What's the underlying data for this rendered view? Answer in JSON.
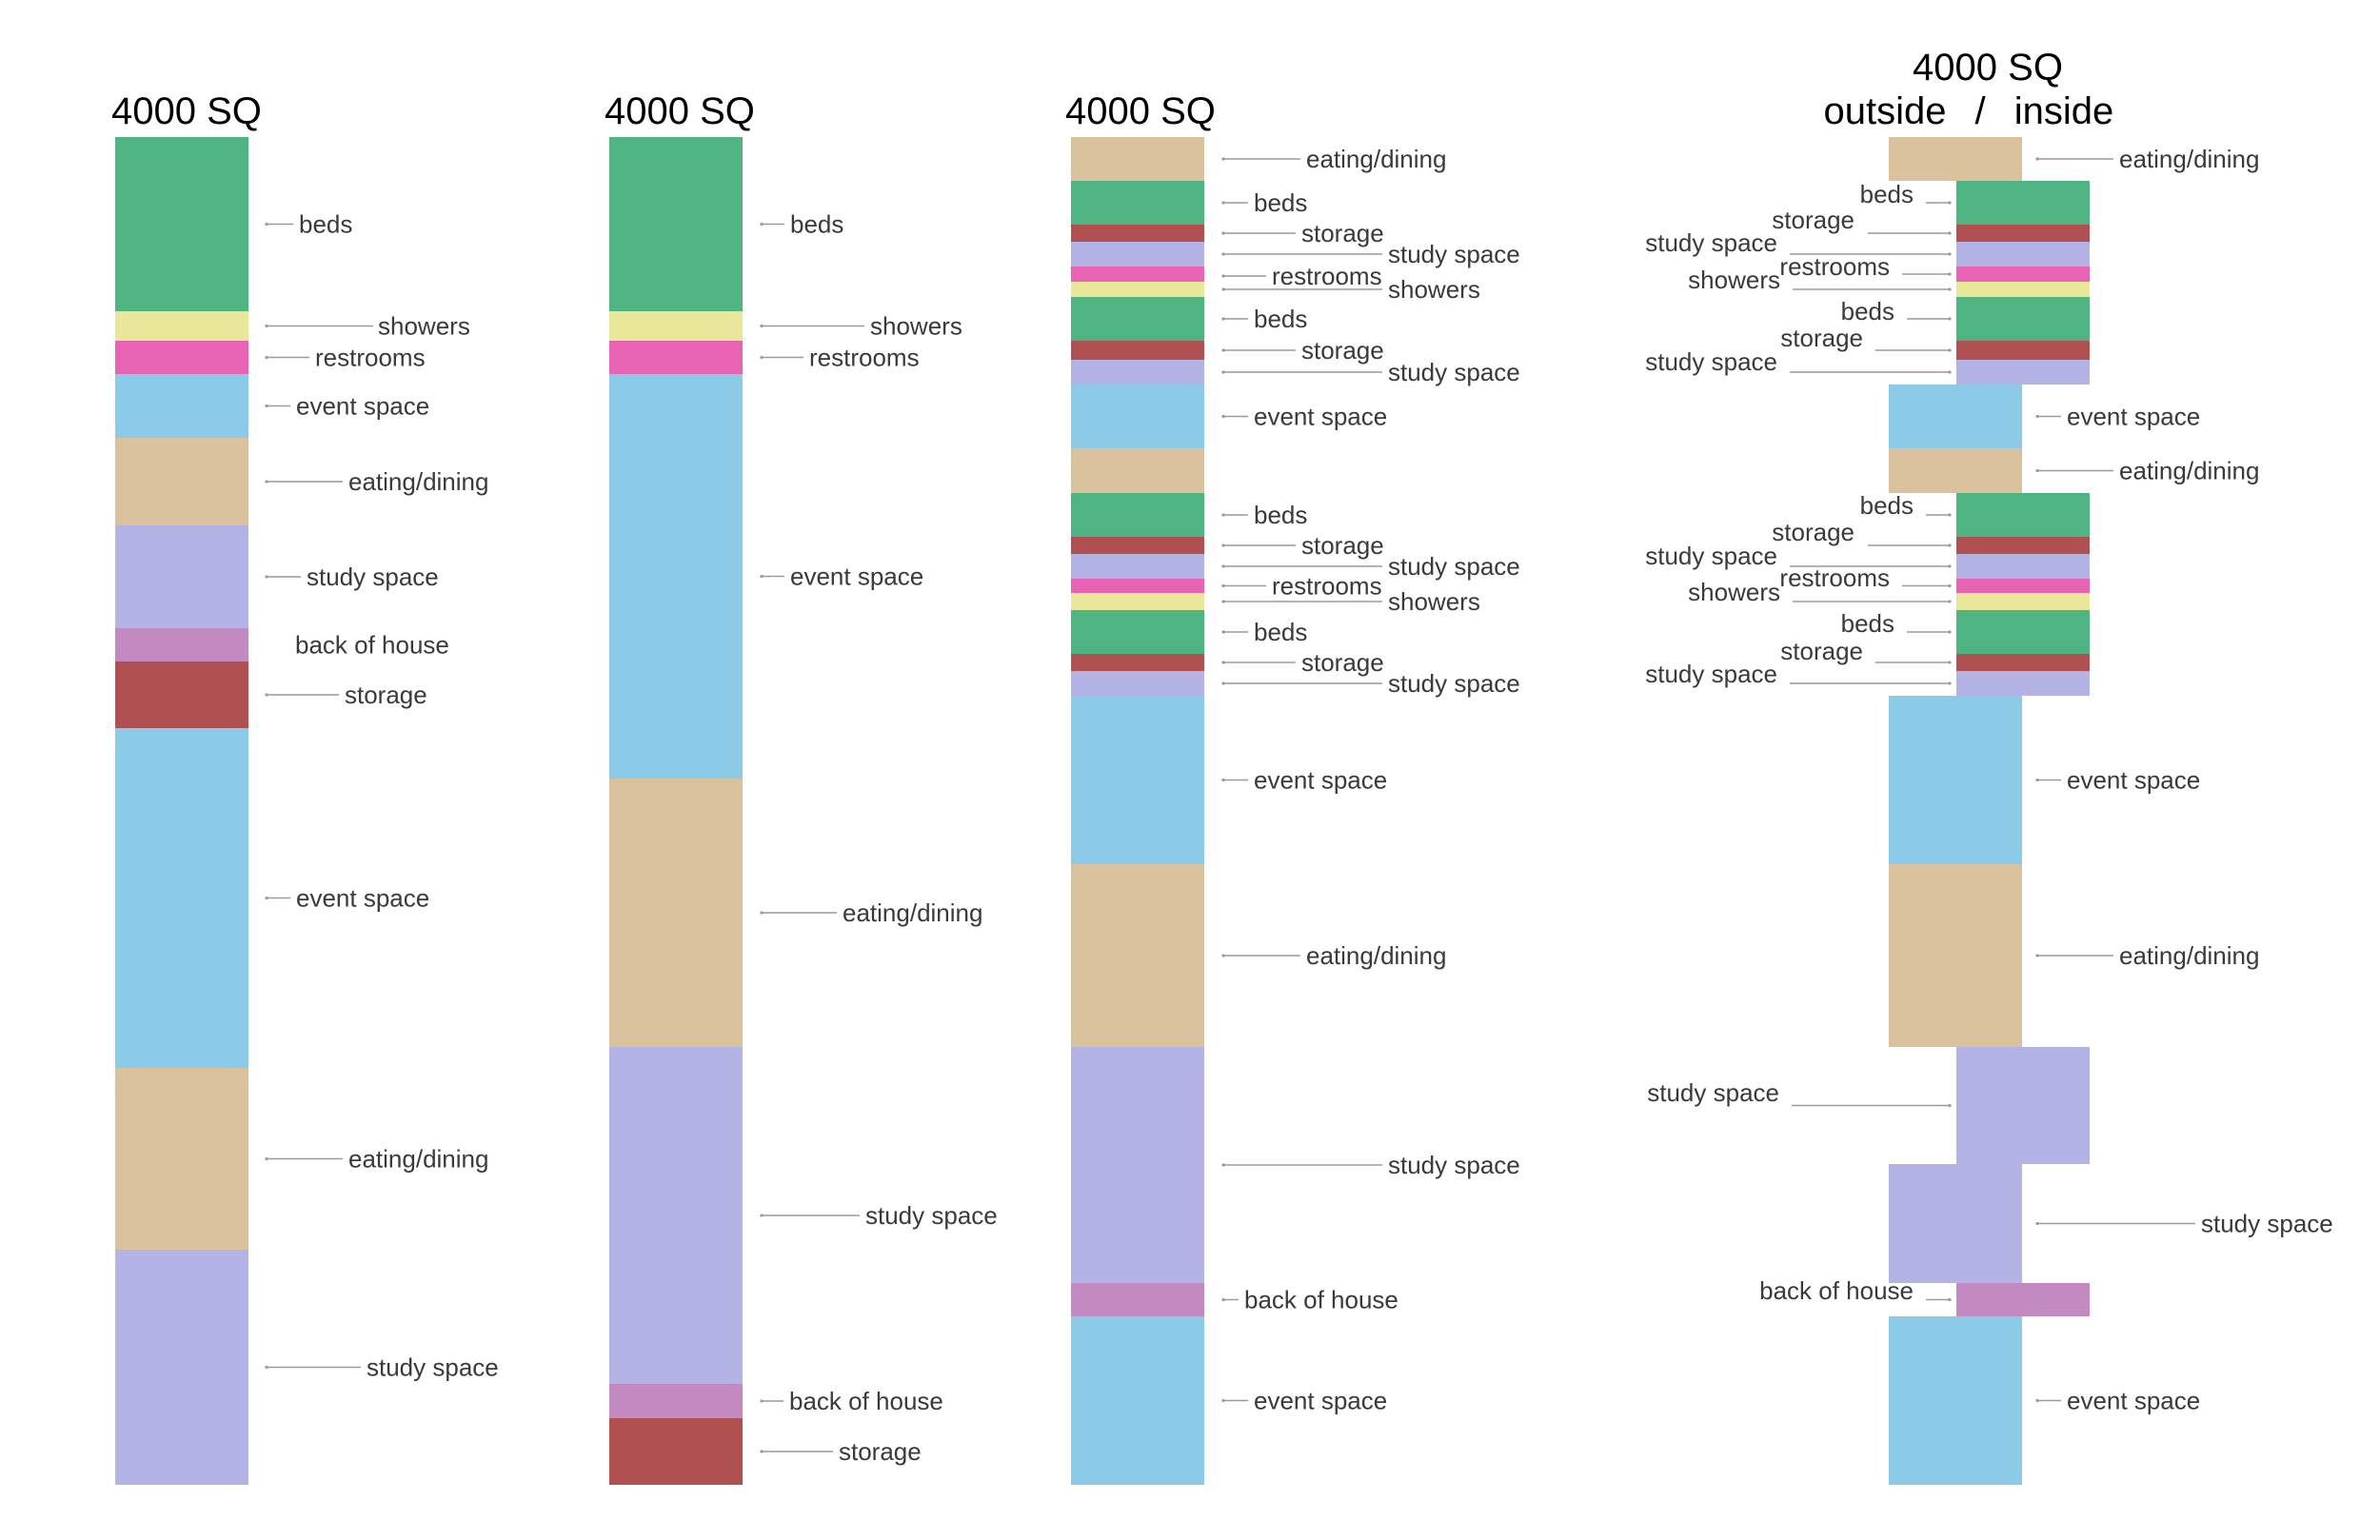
{
  "colors": {
    "beds": "#4eb582",
    "showers": "#e9e89a",
    "restrooms": "#e863b4",
    "event_space": "#8ccbe7",
    "eating_dining": "#d9c29c",
    "study_space": "#b4b3e6",
    "back_of_house": "#c28ac1",
    "storage": "#b15050",
    "leader": "#9a9a9a"
  },
  "columns": [
    {
      "title": "4000 SQ",
      "blocks": [
        {
          "label": "beds",
          "type": "beds"
        },
        {
          "label": "showers",
          "type": "showers"
        },
        {
          "label": "restrooms",
          "type": "restrooms"
        },
        {
          "label": "event space",
          "type": "event_space"
        },
        {
          "label": "eating/dining",
          "type": "eating_dining"
        },
        {
          "label": "study space",
          "type": "study_space"
        },
        {
          "label": "back of house",
          "type": "back_of_house"
        },
        {
          "label": "storage",
          "type": "storage"
        },
        {
          "label": "event space",
          "type": "event_space"
        },
        {
          "label": "eating/dining",
          "type": "eating_dining"
        },
        {
          "label": "study space",
          "type": "study_space"
        }
      ]
    },
    {
      "title": "4000 SQ",
      "blocks": [
        {
          "label": "beds",
          "type": "beds"
        },
        {
          "label": "showers",
          "type": "showers"
        },
        {
          "label": "restrooms",
          "type": "restrooms"
        },
        {
          "label": "event space",
          "type": "event_space"
        },
        {
          "label": "eating/dining",
          "type": "eating_dining"
        },
        {
          "label": "study space",
          "type": "study_space"
        },
        {
          "label": "back of house",
          "type": "back_of_house"
        },
        {
          "label": "storage",
          "type": "storage"
        }
      ]
    },
    {
      "title": "4000 SQ",
      "blocks": [
        {
          "label": "eating/dining",
          "type": "eating_dining"
        },
        {
          "label": "beds",
          "type": "beds"
        },
        {
          "label": "storage",
          "type": "storage"
        },
        {
          "label": "study space",
          "type": "study_space"
        },
        {
          "label": "restrooms",
          "type": "restrooms"
        },
        {
          "label": "showers",
          "type": "showers"
        },
        {
          "label": "beds",
          "type": "beds"
        },
        {
          "label": "storage",
          "type": "storage"
        },
        {
          "label": "study space",
          "type": "study_space"
        },
        {
          "label": "event space",
          "type": "event_space"
        },
        {
          "label": "",
          "type": "eating_dining"
        },
        {
          "label": "beds",
          "type": "beds"
        },
        {
          "label": "storage",
          "type": "storage"
        },
        {
          "label": "study space",
          "type": "study_space"
        },
        {
          "label": "restrooms",
          "type": "restrooms"
        },
        {
          "label": "showers",
          "type": "showers"
        },
        {
          "label": "beds",
          "type": "beds"
        },
        {
          "label": "storage",
          "type": "storage"
        },
        {
          "label": "study space",
          "type": "study_space"
        },
        {
          "label": "event space",
          "type": "event_space"
        },
        {
          "label": "eating/dining",
          "type": "eating_dining"
        },
        {
          "label": "study space",
          "type": "study_space"
        },
        {
          "label": "back of house",
          "type": "back_of_house"
        },
        {
          "label": "event space",
          "type": "event_space"
        }
      ]
    },
    {
      "title": "4000 SQ",
      "subtitle_outside": "outside",
      "subtitle_sep": "/",
      "subtitle_inside": "inside",
      "blocks": [
        {
          "label": "eating/dining",
          "type": "eating_dining",
          "zone": "outside"
        },
        {
          "label": "beds",
          "type": "beds",
          "zone": "inside"
        },
        {
          "label": "storage",
          "type": "storage",
          "zone": "inside"
        },
        {
          "label": "study space",
          "type": "study_space",
          "zone": "inside"
        },
        {
          "label": "restrooms",
          "type": "restrooms",
          "zone": "inside"
        },
        {
          "label": "showers",
          "type": "showers",
          "zone": "inside"
        },
        {
          "label": "beds",
          "type": "beds",
          "zone": "inside"
        },
        {
          "label": "storage",
          "type": "storage",
          "zone": "inside"
        },
        {
          "label": "study space",
          "type": "study_space",
          "zone": "inside"
        },
        {
          "label": "event space",
          "type": "event_space",
          "zone": "outside"
        },
        {
          "label": "eating/dining",
          "type": "eating_dining",
          "zone": "outside"
        },
        {
          "label": "beds",
          "type": "beds",
          "zone": "inside"
        },
        {
          "label": "storage",
          "type": "storage",
          "zone": "inside"
        },
        {
          "label": "study space",
          "type": "study_space",
          "zone": "inside"
        },
        {
          "label": "restrooms",
          "type": "restrooms",
          "zone": "inside"
        },
        {
          "label": "showers",
          "type": "showers",
          "zone": "inside"
        },
        {
          "label": "beds",
          "type": "beds",
          "zone": "inside"
        },
        {
          "label": "storage",
          "type": "storage",
          "zone": "inside"
        },
        {
          "label": "study space",
          "type": "study_space",
          "zone": "inside"
        },
        {
          "label": "event space",
          "type": "event_space",
          "zone": "outside"
        },
        {
          "label": "eating/dining",
          "type": "eating_dining",
          "zone": "outside"
        },
        {
          "label": "study space",
          "type": "study_space",
          "zone": "inside"
        },
        {
          "label": "study space",
          "type": "study_space",
          "zone": "outside"
        },
        {
          "label": "back of house",
          "type": "back_of_house",
          "zone": "inside"
        },
        {
          "label": "event space",
          "type": "event_space",
          "zone": "outside"
        }
      ]
    }
  ]
}
